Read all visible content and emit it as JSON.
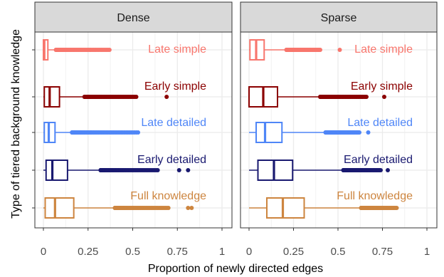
{
  "chart_data": {
    "type": "box",
    "xlabel": "Proportion of newly directed edges",
    "ylabel": "Type of tiered background knowledge",
    "xlim": [
      0,
      1
    ],
    "xticks": [
      0,
      0.25,
      0.5,
      0.75,
      1
    ],
    "xtick_labels": [
      "0",
      "0.25",
      "0.5",
      "0.75",
      "1"
    ],
    "grid": true,
    "legend": "inline labels above each box",
    "series": [
      {
        "name": "Late simple",
        "color": "#F8766D"
      },
      {
        "name": "Early simple",
        "color": "#8B0000"
      },
      {
        "name": "Late detailed",
        "color": "#4F86F7"
      },
      {
        "name": "Early detailed",
        "color": "#191970"
      },
      {
        "name": "Full knowledge",
        "color": "#CD853F"
      }
    ],
    "panels": [
      {
        "title": "Dense",
        "boxes": [
          {
            "series": "Late simple",
            "whisker_low": 0.0,
            "q1": 0.0,
            "median": 0.005,
            "q3": 0.025,
            "whisker_high": 0.06,
            "outliers_range": [
              0.07,
              0.37
            ]
          },
          {
            "series": "Early simple",
            "whisker_low": 0.0,
            "q1": 0.005,
            "median": 0.035,
            "q3": 0.09,
            "whisker_high": 0.22,
            "outliers_range": [
              0.23,
              0.52
            ],
            "outliers_extra": [
              0.69
            ]
          },
          {
            "series": "Late detailed",
            "whisker_low": 0.0,
            "q1": 0.005,
            "median": 0.03,
            "q3": 0.065,
            "whisker_high": 0.15,
            "outliers_range": [
              0.16,
              0.53
            ]
          },
          {
            "series": "Early detailed",
            "whisker_low": 0.0,
            "q1": 0.015,
            "median": 0.05,
            "q3": 0.135,
            "whisker_high": 0.31,
            "outliers_range": [
              0.32,
              0.64
            ],
            "outliers_extra": [
              0.76,
              0.81
            ]
          },
          {
            "series": "Full knowledge",
            "whisker_low": 0.0,
            "q1": 0.01,
            "median": 0.065,
            "q3": 0.17,
            "whisker_high": 0.39,
            "outliers_range": [
              0.4,
              0.7
            ],
            "outliers_extra": [
              0.81,
              0.83
            ]
          }
        ]
      },
      {
        "title": "Sparse",
        "boxes": [
          {
            "series": "Late simple",
            "whisker_low": 0.0,
            "q1": 0.005,
            "median": 0.04,
            "q3": 0.085,
            "whisker_high": 0.2,
            "outliers_range": [
              0.21,
              0.4
            ],
            "outliers_extra": [
              0.51
            ]
          },
          {
            "series": "Early simple",
            "whisker_low": 0.0,
            "q1": 0.0,
            "median": 0.08,
            "q3": 0.16,
            "whisker_high": 0.39,
            "outliers_range": [
              0.4,
              0.66
            ],
            "outliers_extra": [
              0.76
            ]
          },
          {
            "series": "Late detailed",
            "whisker_low": 0.0,
            "q1": 0.04,
            "median": 0.09,
            "q3": 0.185,
            "whisker_high": 0.42,
            "outliers_range": [
              0.43,
              0.62
            ],
            "outliers_extra": [
              0.67
            ]
          },
          {
            "series": "Early detailed",
            "whisker_low": 0.0,
            "q1": 0.05,
            "median": 0.14,
            "q3": 0.245,
            "whisker_high": 0.52,
            "outliers_range": [
              0.53,
              0.74
            ],
            "outliers_extra": [
              0.78
            ]
          },
          {
            "series": "Full knowledge",
            "whisker_low": 0.0,
            "q1": 0.1,
            "median": 0.19,
            "q3": 0.31,
            "whisker_high": 0.62,
            "outliers_range": [
              0.63,
              0.83
            ]
          }
        ]
      }
    ]
  }
}
